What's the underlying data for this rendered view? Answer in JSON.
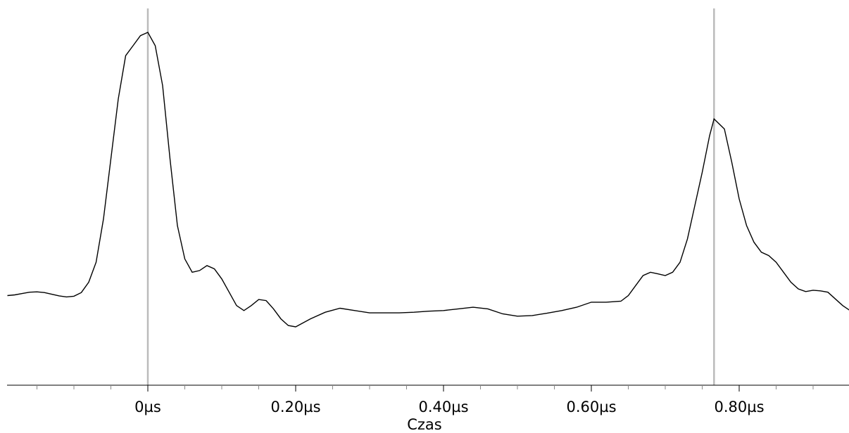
{
  "chart_data": {
    "type": "line",
    "title": "",
    "xlabel": "Czas",
    "ylabel": "",
    "x_unit": "µs",
    "xlim": [
      -0.19,
      0.95
    ],
    "ylim": [
      0,
      1
    ],
    "grid": false,
    "x_ticks": [
      {
        "value": 0.0,
        "label": "0µs"
      },
      {
        "value": 0.2,
        "label": "0.20µs"
      },
      {
        "value": 0.4,
        "label": "0.40µs"
      },
      {
        "value": 0.6,
        "label": "0.60µs"
      },
      {
        "value": 0.8,
        "label": "0.80µs"
      }
    ],
    "minor_tick_step": 0.05,
    "markers": [
      0.0,
      0.766
    ],
    "series": [
      {
        "color": "#000000",
        "x": [
          -0.19,
          -0.18,
          -0.17,
          -0.16,
          -0.15,
          -0.14,
          -0.13,
          -0.12,
          -0.11,
          -0.1,
          -0.09,
          -0.08,
          -0.07,
          -0.06,
          -0.05,
          -0.04,
          -0.03,
          -0.02,
          -0.01,
          0.0,
          0.01,
          0.02,
          0.03,
          0.04,
          0.05,
          0.06,
          0.07,
          0.08,
          0.09,
          0.1,
          0.11,
          0.12,
          0.13,
          0.14,
          0.15,
          0.16,
          0.17,
          0.18,
          0.19,
          0.2,
          0.22,
          0.24,
          0.26,
          0.28,
          0.3,
          0.32,
          0.34,
          0.36,
          0.38,
          0.4,
          0.42,
          0.44,
          0.46,
          0.48,
          0.5,
          0.52,
          0.54,
          0.56,
          0.58,
          0.6,
          0.62,
          0.64,
          0.65,
          0.66,
          0.67,
          0.68,
          0.69,
          0.7,
          0.71,
          0.72,
          0.73,
          0.74,
          0.75,
          0.76,
          0.766,
          0.78,
          0.79,
          0.8,
          0.81,
          0.82,
          0.83,
          0.84,
          0.85,
          0.86,
          0.87,
          0.88,
          0.89,
          0.9,
          0.91,
          0.92,
          0.93,
          0.94,
          0.95
        ],
        "y": [
          0.21,
          0.212,
          0.216,
          0.22,
          0.221,
          0.219,
          0.214,
          0.209,
          0.206,
          0.208,
          0.219,
          0.25,
          0.31,
          0.44,
          0.62,
          0.8,
          0.93,
          0.96,
          0.99,
          1.0,
          0.96,
          0.84,
          0.62,
          0.42,
          0.32,
          0.28,
          0.285,
          0.3,
          0.29,
          0.26,
          0.22,
          0.18,
          0.165,
          0.18,
          0.198,
          0.195,
          0.17,
          0.14,
          0.12,
          0.116,
          0.14,
          0.16,
          0.172,
          0.165,
          0.158,
          0.158,
          0.158,
          0.16,
          0.163,
          0.165,
          0.17,
          0.175,
          0.17,
          0.155,
          0.148,
          0.15,
          0.157,
          0.165,
          0.175,
          0.19,
          0.19,
          0.193,
          0.21,
          0.24,
          0.27,
          0.28,
          0.275,
          0.27,
          0.28,
          0.31,
          0.38,
          0.48,
          0.58,
          0.69,
          0.74,
          0.71,
          0.61,
          0.5,
          0.42,
          0.37,
          0.34,
          0.33,
          0.31,
          0.28,
          0.25,
          0.23,
          0.222,
          0.226,
          0.224,
          0.22,
          0.2,
          0.18,
          0.165
        ]
      }
    ]
  }
}
